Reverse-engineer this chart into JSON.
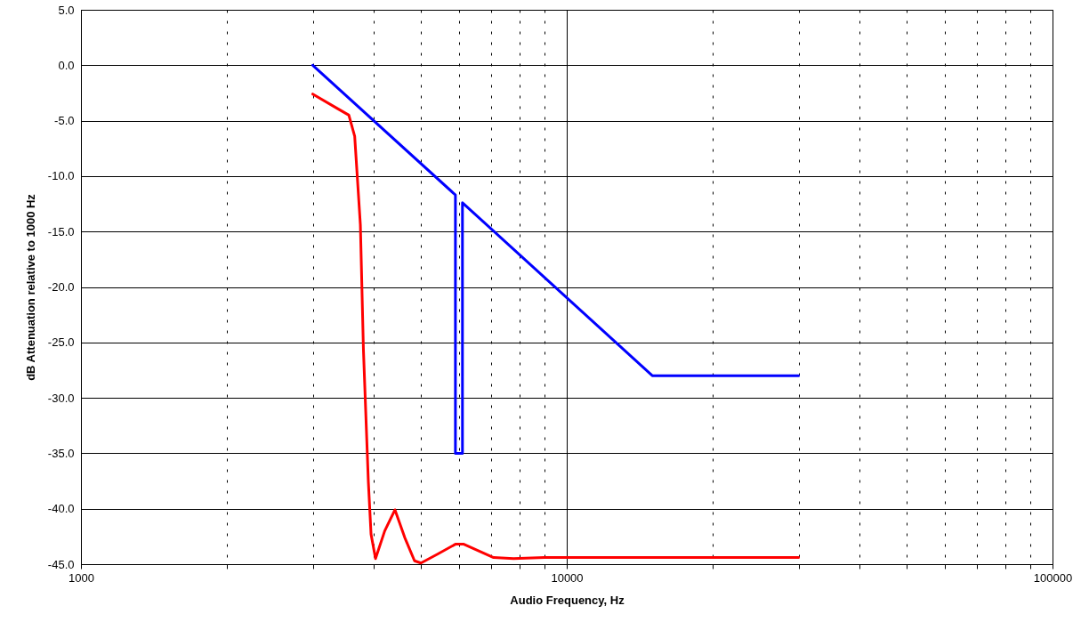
{
  "chart_data": {
    "type": "line",
    "xlabel": "Audio Frequency, Hz",
    "ylabel": "dB Attenuation relative to 1000 Hz",
    "log": "x",
    "grid": true,
    "marker": "none",
    "line_style": "solid",
    "xlim": [
      1000,
      100000
    ],
    "xticks": [
      1000,
      {
        "value": 2000,
        "label": null
      },
      {
        "value": 3000,
        "label": null
      },
      {
        "value": 4000,
        "label": null
      },
      {
        "value": 5000,
        "label": null
      },
      {
        "value": 6000,
        "label": null
      },
      {
        "value": 7000,
        "label": null
      },
      {
        "value": 8000,
        "label": null
      },
      {
        "value": 9000,
        "label": null
      },
      10000,
      {
        "value": 20000,
        "label": null
      },
      {
        "value": 30000,
        "label": null
      },
      {
        "value": 40000,
        "label": null
      },
      {
        "value": 50000,
        "label": null
      },
      {
        "value": 60000,
        "label": null
      },
      {
        "value": 70000,
        "label": null
      },
      {
        "value": 80000,
        "label": null
      },
      {
        "value": 90000,
        "label": null
      },
      100000
    ],
    "ylim": [
      -45,
      5
    ],
    "yticks": [
      {
        "value": 5,
        "label": "5.0"
      },
      {
        "value": 0,
        "label": "0.0"
      },
      {
        "value": -5,
        "label": "-5.0"
      },
      {
        "value": -10,
        "label": "-10.0"
      },
      {
        "value": -15,
        "label": "-15.0"
      },
      {
        "value": -20,
        "label": "-20.0"
      },
      {
        "value": -25,
        "label": "-25.0"
      },
      {
        "value": -30,
        "label": "-30.0"
      },
      {
        "value": -35,
        "label": "-35.0"
      },
      {
        "value": -40,
        "label": "-40.0"
      },
      {
        "value": -45,
        "label": "-45.0"
      }
    ],
    "series": [
      {
        "color": "#0000ff",
        "x": [
          3000,
          5900,
          5900,
          6100,
          6100,
          15000,
          30000
        ],
        "values": [
          0,
          -11.7,
          -35,
          -35,
          -12.4,
          -28,
          -28
        ]
      },
      {
        "color": "#ff0000",
        "x": [
          3000,
          3370,
          3560,
          3660,
          3760,
          3815,
          3905,
          3955,
          4040,
          4220,
          4430,
          4640,
          4860,
          5010,
          5420,
          5900,
          6140,
          7070,
          7770,
          9000,
          15000,
          30000
        ],
        "values": [
          -2.6,
          -3.9,
          -4.5,
          -6.4,
          -14.4,
          -25.7,
          -37.6,
          -42.3,
          -44.5,
          -42,
          -40.1,
          -42.6,
          -44.7,
          -44.9,
          -44.1,
          -43.2,
          -43.2,
          -44.4,
          -44.5,
          -44.4,
          -44.4,
          -44.4
        ]
      }
    ]
  }
}
